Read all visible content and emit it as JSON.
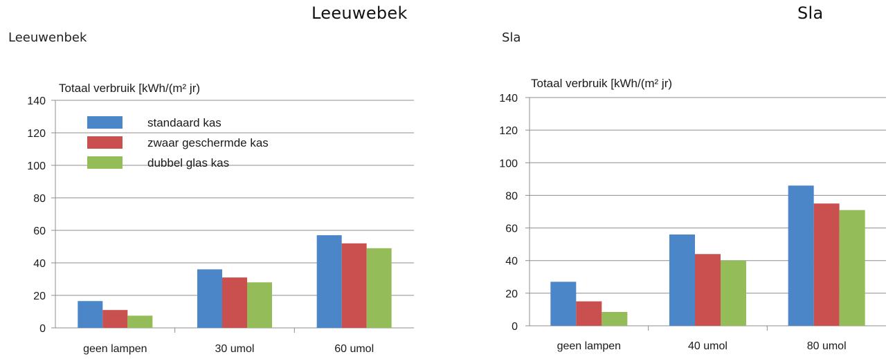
{
  "top_titles": [
    "Leeuwebek",
    "Sla"
  ],
  "chart_data": [
    {
      "type": "bar",
      "heading": "Leeuwenbek",
      "title": "Totaal verbruik [kWh/(m² jr)",
      "categories": [
        "geen lampen",
        "30 umol",
        "60 umol"
      ],
      "series": [
        {
          "name": "standaard kas",
          "values": [
            16.5,
            36,
            57
          ],
          "color": "#4a86c8"
        },
        {
          "name": "zwaar geschermde kas",
          "values": [
            11,
            31,
            52
          ],
          "color": "#c9504e"
        },
        {
          "name": "dubbel glas kas",
          "values": [
            7.5,
            28,
            49
          ],
          "color": "#94bd5a"
        }
      ],
      "yticks": [
        "0",
        "20",
        "40",
        "60",
        "80",
        "100",
        "120",
        "140"
      ],
      "ylim": [
        0,
        140
      ],
      "grid": true,
      "legend": "top-left"
    },
    {
      "type": "bar",
      "heading": "Sla",
      "title": "Totaal verbruik [kWh/(m² jr)",
      "categories": [
        "geen lampen",
        "40 umol",
        "80 umol"
      ],
      "series": [
        {
          "name": "standaard kas",
          "values": [
            27,
            56,
            86
          ],
          "color": "#4a86c8"
        },
        {
          "name": "zwaar geschermde kas",
          "values": [
            15,
            44,
            75
          ],
          "color": "#c9504e"
        },
        {
          "name": "dubbel glas kas",
          "values": [
            8.5,
            40,
            71
          ],
          "color": "#94bd5a"
        }
      ],
      "yticks": [
        "0",
        "20",
        "40",
        "60",
        "80",
        "100",
        "120",
        "140"
      ],
      "ylim": [
        0,
        140
      ],
      "grid": true,
      "legend": "none"
    }
  ]
}
